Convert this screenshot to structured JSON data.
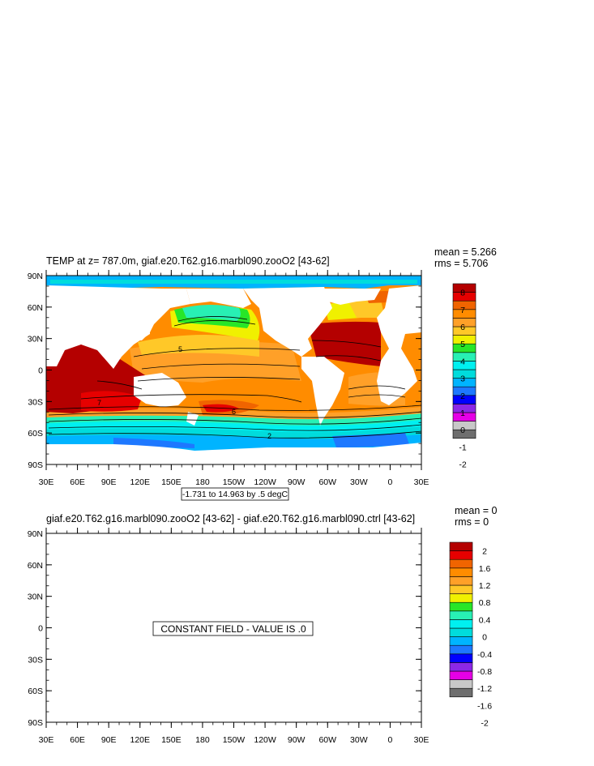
{
  "colors": {
    "land": "#ffffff",
    "frame": "#000000",
    "top_scale": [
      "#6e6e6e",
      "#c8c8c8",
      "#e600e6",
      "#8c28e6",
      "#0000ff",
      "#1e78ff",
      "#00b4ff",
      "#00dcdc",
      "#00f0f0",
      "#28f0b4",
      "#28e628",
      "#f0f000",
      "#ffc828",
      "#ffa028",
      "#ff8c00",
      "#f06400",
      "#e60000",
      "#b40000"
    ],
    "bottom_scale": [
      "#6e6e6e",
      "#c8c8c8",
      "#e600e6",
      "#8c28e6",
      "#0000ff",
      "#1e78ff",
      "#00b4ff",
      "#00dcdc",
      "#00f0f0",
      "#28f0b4",
      "#28e628",
      "#f0f000",
      "#ffc828",
      "#ffa028",
      "#ff8c00",
      "#f06400",
      "#e60000",
      "#b40000"
    ]
  },
  "axes": {
    "lat_labels": [
      "90N",
      "60N",
      "30N",
      "0",
      "30S",
      "60S",
      "90S"
    ],
    "lon_labels": [
      "30E",
      "60E",
      "90E",
      "120E",
      "150E",
      "180",
      "150W",
      "120W",
      "90W",
      "60W",
      "30W",
      "0",
      "30E"
    ]
  },
  "top_panel": {
    "title": "TEMP at z= 787.0m, giaf.e20.T62.g16.marbl090.zooO2 [43-62]",
    "mean": "mean = 5.266",
    "rms": "rms = 5.706",
    "contour_info": "-1.731 to 14.963 by .5 degC",
    "contour_labels": [
      "5",
      "6",
      "7",
      "2"
    ],
    "colorbar_labels": [
      "8",
      "7",
      "6",
      "5",
      "4",
      "3",
      "2",
      "1",
      "0",
      "-1",
      "-2"
    ]
  },
  "bottom_panel": {
    "title": "giaf.e20.T62.g16.marbl090.zooO2 [43-62] - giaf.e20.T62.g16.marbl090.ctrl [43-62]",
    "mean": "mean = 0",
    "rms": "rms = 0",
    "message": "CONSTANT FIELD - VALUE IS .0",
    "colorbar_labels": [
      "2",
      "1.6",
      "1.2",
      "0.8",
      "0.4",
      "0",
      "-0.4",
      "-0.8",
      "-1.2",
      "-1.6",
      "-2"
    ]
  }
}
